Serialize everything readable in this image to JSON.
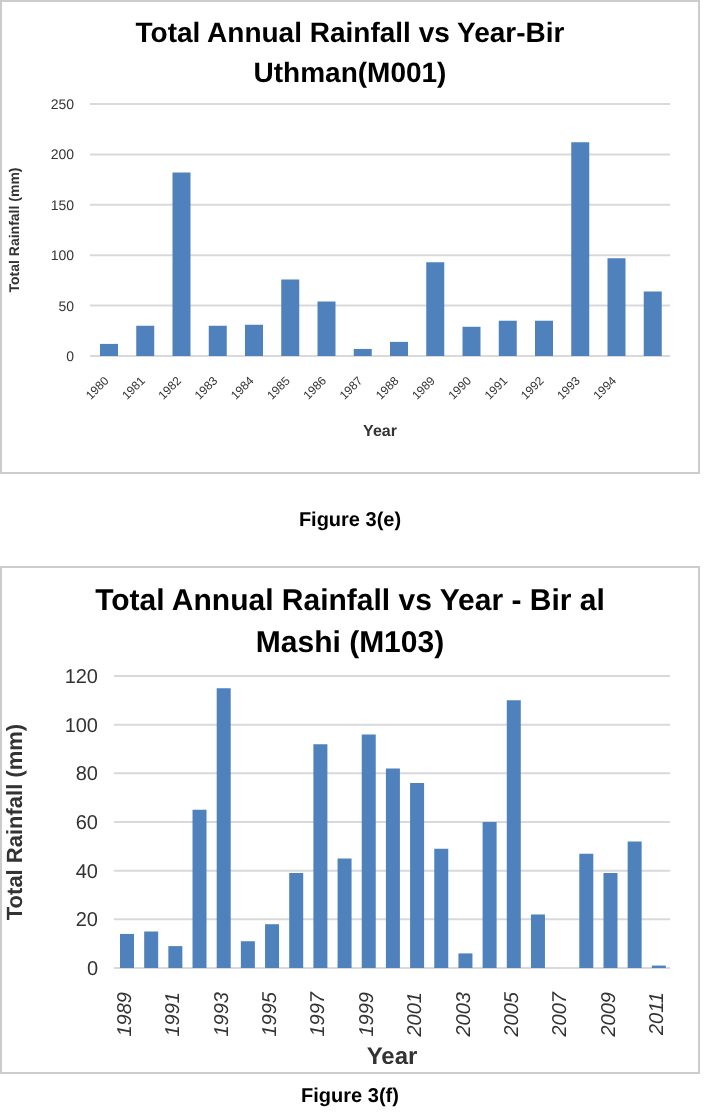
{
  "chart_data": [
    {
      "type": "bar",
      "title": "Total Annual Rainfall vs Year-Bir Uthman(M001)",
      "xlabel": "Year",
      "ylabel": "Total Rainfall (mm)",
      "categories": [
        "1980",
        "1981",
        "1982",
        "1983",
        "1984",
        "1985",
        "1986",
        "1987",
        "1988",
        "1989",
        "1990",
        "1991",
        "1992",
        "1993",
        "1994",
        null
      ],
      "values": [
        12,
        30,
        182,
        30,
        31,
        76,
        54,
        7,
        14,
        93,
        29,
        35,
        35,
        212,
        97,
        64
      ],
      "color": "#4f81bd",
      "ylim": [
        0,
        250
      ],
      "yticks": [
        0,
        50,
        100,
        150,
        200,
        250
      ],
      "grid": "y",
      "annotations": [
        "Figure 3(e)"
      ]
    },
    {
      "type": "bar",
      "title": "Total Annual Rainfall vs Year - Bir al Mashi (M103)",
      "xlabel": "Year",
      "ylabel": "Total Rainfall (mm)",
      "categories": [
        "1989",
        null,
        "1991",
        null,
        "1993",
        null,
        "1995",
        null,
        "1997",
        null,
        "1999",
        null,
        "2001",
        null,
        "2003",
        null,
        "2005",
        null,
        "2007",
        null,
        "2009",
        null,
        "2011"
      ],
      "values": [
        14,
        15,
        9,
        65,
        115,
        11,
        18,
        39,
        92,
        45,
        96,
        82,
        76,
        49,
        6,
        60,
        110,
        22,
        0,
        47,
        39,
        52,
        1
      ],
      "color": "#4f81bd",
      "ylim": [
        0,
        120
      ],
      "yticks": [
        0,
        20,
        40,
        60,
        80,
        100,
        120
      ],
      "grid": "y",
      "annotations": [
        "Figure 3(f)"
      ]
    }
  ]
}
